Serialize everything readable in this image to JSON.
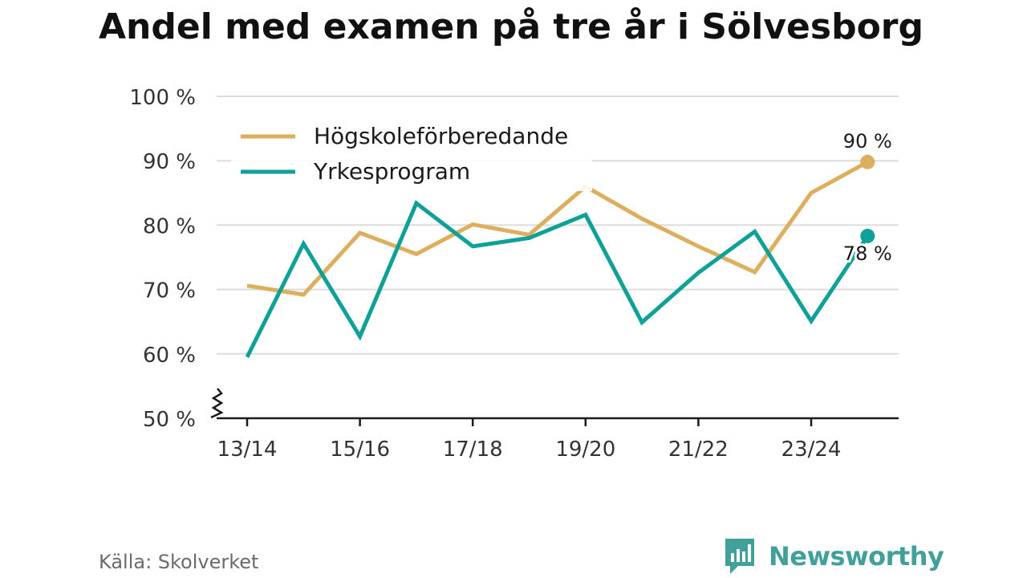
{
  "title": "Andel med examen på tre år i Sölvesborg",
  "source": "Källa: Skolverket",
  "brand": {
    "name": "Newsworthy",
    "icon": "bar-chart-speech-bubble-icon",
    "color": "#41a09a"
  },
  "chart_data": {
    "type": "line",
    "categories": [
      "13/14",
      "14/15",
      "15/16",
      "16/17",
      "17/18",
      "18/19",
      "19/20",
      "20/21",
      "21/22",
      "22/23",
      "23/24",
      "24/25"
    ],
    "x_tick_labels": [
      "13/14",
      "",
      "15/16",
      "",
      "17/18",
      "",
      "19/20",
      "",
      "21/22",
      "",
      "23/24",
      ""
    ],
    "y_ticks": [
      50,
      60,
      70,
      80,
      90,
      100
    ],
    "y_tick_labels": [
      "50 %",
      "60 %",
      "70 %",
      "80 %",
      "90 %",
      "100 %"
    ],
    "ylim": [
      50,
      100
    ],
    "y_axis_break": true,
    "grid": true,
    "legend_position": "top-left",
    "series": [
      {
        "name": "Högskoleförberedande",
        "color": "#dcae5e",
        "values": [
          70.6,
          69.2,
          78.8,
          75.5,
          80.1,
          78.5,
          86.0,
          81.0,
          76.7,
          72.7,
          85.0,
          89.8
        ],
        "end_label": "90 %"
      },
      {
        "name": "Yrkesprogram",
        "color": "#0fa197",
        "values": [
          59.5,
          77.1,
          62.7,
          83.4,
          76.7,
          78.0,
          81.6,
          64.9,
          72.6,
          79.0,
          65.1,
          78.3
        ],
        "end_label": "78 %"
      }
    ]
  }
}
